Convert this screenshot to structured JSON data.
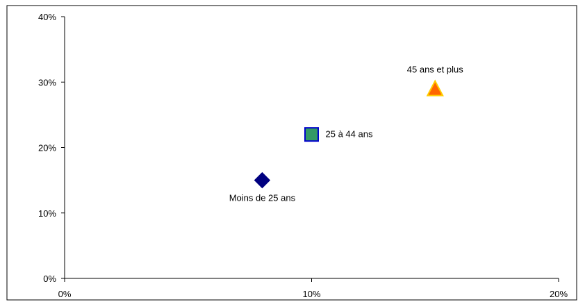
{
  "chart_data": {
    "type": "scatter",
    "title": "",
    "xlabel": "",
    "ylabel": "",
    "xlim": [
      0,
      20
    ],
    "ylim": [
      0,
      40
    ],
    "x_ticks": [
      "0%",
      "10%",
      "20%"
    ],
    "y_ticks": [
      "0%",
      "10%",
      "20%",
      "30%",
      "40%"
    ],
    "grid": false,
    "legend": "none",
    "series": [
      {
        "label": "Moins de 25 ans",
        "x": 8,
        "y": 15,
        "marker": "diamond",
        "color": "#000080",
        "stroke": "#000080",
        "label_anchor": "below"
      },
      {
        "label": "25 à 44 ans",
        "x": 10,
        "y": 22,
        "marker": "square",
        "color": "#339966",
        "stroke": "#0000CC",
        "label_anchor": "right"
      },
      {
        "label": "45 ans et plus",
        "x": 15,
        "y": 29,
        "marker": "triangle",
        "color": "#FF6600",
        "stroke": "#FFCC00",
        "label_anchor": "above"
      }
    ]
  }
}
